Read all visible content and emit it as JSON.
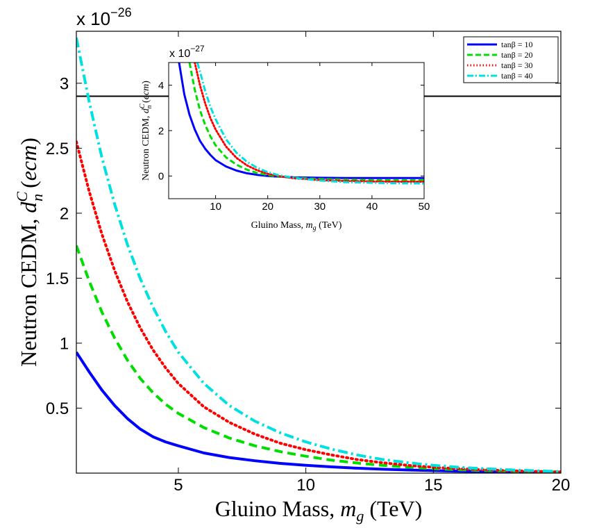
{
  "chart_data": [
    {
      "type": "line",
      "xlabel": "Gluino Mass, m_g (TeV)",
      "xlabel_parts": {
        "pre": "Gluino Mass, ",
        "var": "m",
        "sub": "g",
        "post": " (TeV)"
      },
      "ylabel": "Neutron CEDM, d_n^C (ecm)",
      "ylabel_parts": {
        "pre": "Neutron CEDM, ",
        "var": "d",
        "sub": "n",
        "sup": "C",
        "post_open": " (",
        "unit": "ecm",
        "post_close": ")"
      },
      "y_exponent_label": "x 10",
      "y_exponent": "−26",
      "xlim": [
        1,
        20
      ],
      "ylim": [
        0,
        3.4
      ],
      "xticks": [
        5,
        10,
        15,
        20
      ],
      "yticks": [
        0.5,
        1,
        1.5,
        2,
        2.5,
        3
      ],
      "ytick_labels": [
        "0.5",
        "1",
        "1.5",
        "2",
        "2.5",
        "3"
      ],
      "reference_line": {
        "y": 2.9,
        "color": "#000000"
      },
      "legend": {
        "position": "top-right",
        "entries": [
          {
            "label": "tanβ = 10"
          },
          {
            "label": "tanβ = 20"
          },
          {
            "label": "tanβ = 30"
          },
          {
            "label": "tanβ = 40"
          }
        ]
      },
      "series": [
        {
          "name": "tanβ = 10",
          "color": "#0000ff",
          "style": "solid",
          "x": [
            1,
            1.5,
            2,
            2.5,
            3,
            3.5,
            4,
            4.5,
            5,
            6,
            7,
            8,
            9,
            10,
            11,
            12,
            13,
            14,
            15,
            16,
            17,
            18,
            19,
            20
          ],
          "y": [
            0.93,
            0.78,
            0.64,
            0.52,
            0.42,
            0.34,
            0.28,
            0.24,
            0.21,
            0.155,
            0.12,
            0.095,
            0.075,
            0.06,
            0.048,
            0.038,
            0.03,
            0.024,
            0.019,
            0.015,
            0.012,
            0.01,
            0.008,
            0.006
          ]
        },
        {
          "name": "tanβ = 20",
          "color": "#00dd00",
          "style": "dashed",
          "x": [
            1,
            1.5,
            2,
            2.5,
            3,
            3.5,
            4,
            4.5,
            5,
            6,
            7,
            8,
            9,
            10,
            11,
            12,
            13,
            14,
            15,
            16,
            17,
            18,
            19,
            20
          ],
          "y": [
            1.75,
            1.48,
            1.24,
            1.04,
            0.87,
            0.73,
            0.62,
            0.53,
            0.46,
            0.35,
            0.27,
            0.21,
            0.165,
            0.13,
            0.1,
            0.078,
            0.06,
            0.046,
            0.035,
            0.026,
            0.02,
            0.015,
            0.011,
            0.008
          ]
        },
        {
          "name": "tanβ = 30",
          "color": "#ff0000",
          "style": "dotted",
          "x": [
            1,
            1.5,
            2,
            2.5,
            3,
            3.5,
            4,
            4.5,
            5,
            6,
            7,
            8,
            9,
            10,
            11,
            12,
            13,
            14,
            15,
            16,
            17,
            18,
            19,
            20
          ],
          "y": [
            2.55,
            2.17,
            1.84,
            1.56,
            1.32,
            1.12,
            0.95,
            0.81,
            0.69,
            0.51,
            0.39,
            0.3,
            0.23,
            0.18,
            0.14,
            0.105,
            0.08,
            0.06,
            0.045,
            0.034,
            0.025,
            0.018,
            0.013,
            0.009
          ]
        },
        {
          "name": "tanβ = 40",
          "color": "#00e0e0",
          "style": "dashdot",
          "x": [
            1,
            1.5,
            2,
            2.5,
            3,
            3.5,
            4,
            4.5,
            5,
            6,
            7,
            8,
            9,
            10,
            11,
            12,
            13,
            14,
            15,
            16,
            17,
            18,
            19,
            20
          ],
          "y": [
            3.35,
            2.86,
            2.43,
            2.07,
            1.76,
            1.5,
            1.28,
            1.09,
            0.93,
            0.69,
            0.52,
            0.4,
            0.31,
            0.24,
            0.185,
            0.14,
            0.105,
            0.08,
            0.06,
            0.045,
            0.034,
            0.025,
            0.018,
            0.012
          ]
        }
      ]
    },
    {
      "type": "line",
      "inset": true,
      "xlabel": "Gluino Mass, m_g (TeV)",
      "xlabel_parts": {
        "pre": "Gluino Mass, ",
        "var": "m",
        "sub": "g",
        "post": " (TeV)"
      },
      "ylabel": "Neutron CEDM, d_n^C (ecm)",
      "ylabel_parts": {
        "pre": "Neutron CEDM, ",
        "var": "d",
        "sub": "n",
        "sup": "C",
        "post_open": " (",
        "unit": "ecm",
        "post_close": ")"
      },
      "y_exponent_label": "x 10",
      "y_exponent": "−27",
      "xlim": [
        1,
        50
      ],
      "ylim": [
        -1,
        5
      ],
      "xticks": [
        10,
        20,
        30,
        40,
        50
      ],
      "yticks": [
        0,
        2,
        4
      ],
      "series": [
        {
          "name": "tanβ = 10",
          "color": "#0000ff",
          "style": "solid",
          "x": [
            3,
            4,
            5,
            6,
            7,
            8,
            9,
            10,
            12,
            14,
            16,
            18,
            20,
            22,
            25,
            30,
            35,
            40,
            45,
            50
          ],
          "y": [
            5.0,
            3.6,
            2.7,
            2.05,
            1.55,
            1.2,
            0.93,
            0.7,
            0.42,
            0.24,
            0.12,
            0.05,
            0.0,
            -0.03,
            -0.06,
            -0.08,
            -0.09,
            -0.09,
            -0.09,
            -0.09
          ]
        },
        {
          "name": "tanβ = 20",
          "color": "#00dd00",
          "style": "dashed",
          "x": [
            5,
            6,
            7,
            8,
            9,
            10,
            12,
            14,
            16,
            18,
            20,
            22,
            25,
            30,
            35,
            40,
            45,
            50
          ],
          "y": [
            5.0,
            3.8,
            2.9,
            2.25,
            1.75,
            1.35,
            0.82,
            0.5,
            0.28,
            0.13,
            0.04,
            -0.02,
            -0.08,
            -0.13,
            -0.16,
            -0.18,
            -0.19,
            -0.19
          ]
        },
        {
          "name": "tanβ = 30",
          "color": "#ff0000",
          "style": "dotted",
          "x": [
            6,
            7,
            8,
            9,
            10,
            12,
            14,
            16,
            18,
            20,
            22,
            25,
            30,
            35,
            40,
            45,
            50
          ],
          "y": [
            5.0,
            4.0,
            3.2,
            2.55,
            2.05,
            1.3,
            0.8,
            0.47,
            0.25,
            0.1,
            0.0,
            -0.1,
            -0.18,
            -0.22,
            -0.24,
            -0.25,
            -0.25
          ]
        },
        {
          "name": "tanβ = 40",
          "color": "#00e0e0",
          "style": "dashdot",
          "x": [
            6.5,
            7,
            8,
            9,
            10,
            12,
            14,
            16,
            18,
            20,
            22,
            25,
            30,
            35,
            40,
            45,
            50
          ],
          "y": [
            5.0,
            4.6,
            3.75,
            3.05,
            2.5,
            1.62,
            1.03,
            0.63,
            0.36,
            0.17,
            0.04,
            -0.08,
            -0.2,
            -0.27,
            -0.3,
            -0.32,
            -0.33
          ]
        }
      ]
    }
  ]
}
